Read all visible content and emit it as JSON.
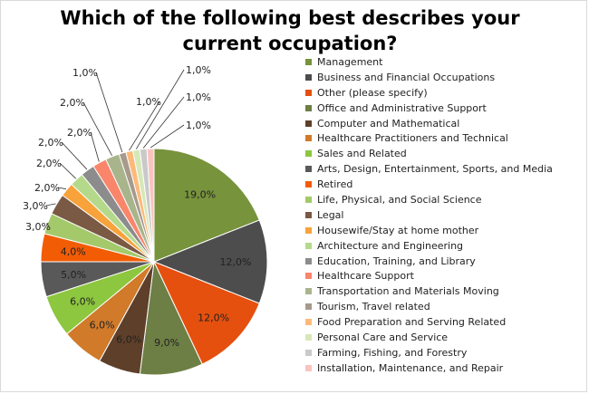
{
  "chart_data": {
    "type": "pie",
    "title": "Which of the following best describes your current occupation?",
    "categories": [
      "Management",
      "Business and Financial Occupations",
      "Other (please specify)",
      "Office and Administrative Support",
      "Computer and Mathematical",
      "Healthcare Practitioners and Technical",
      "Sales and Related",
      "Arts, Design, Entertainment, Sports, and Media",
      "Retired",
      "Life, Physical, and Social Science",
      "Legal",
      "Housewife/Stay at home mother",
      "Architecture and Engineering",
      "Education, Training, and Library",
      "Healthcare Support",
      "Transportation and Materials Moving",
      "Tourism, Travel related",
      "Food Preparation and Serving Related",
      "Personal Care and Service",
      "Farming, Fishing, and Forestry",
      "Installation, Maintenance, and Repair"
    ],
    "values": [
      19,
      12,
      12,
      9,
      6,
      6,
      6,
      5,
      4,
      3,
      3,
      2,
      2,
      2,
      2,
      2,
      1,
      1,
      1,
      1,
      1
    ],
    "labels": [
      "19,0%",
      "12,0%",
      "12,0%",
      "9,0%",
      "6,0%",
      "6,0%",
      "6,0%",
      "5,0%",
      "4,0%",
      "3,0%",
      "3,0%",
      "2,0%",
      "2,0%",
      "2,0%",
      "2,0%",
      "2,0%",
      "1,0%",
      "1,0%",
      "1,0%",
      "1,0%",
      "1,0%"
    ],
    "colors": [
      "#77933c",
      "#4d4d4d",
      "#e5500f",
      "#6e7f45",
      "#5e3f2a",
      "#d07a2a",
      "#8dc63f",
      "#595959",
      "#f25c05",
      "#a4c96a",
      "#7a5a44",
      "#f7a23b",
      "#b5d98a",
      "#8c8c8c",
      "#f9866b",
      "#a8b58c",
      "#a79a8c",
      "#fdb97a",
      "#d6e8b8",
      "#c9c9c9",
      "#f9c3c0"
    ],
    "legend_position": "right"
  }
}
